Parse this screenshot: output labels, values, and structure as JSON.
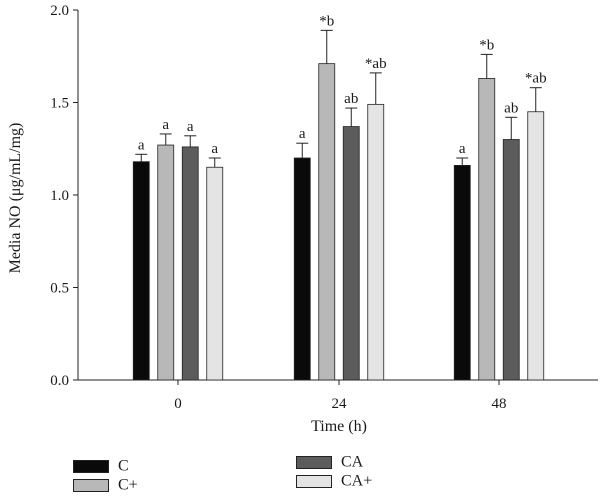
{
  "chart_data": {
    "type": "bar",
    "xlabel": "Time (h)",
    "ylabel": "Media NO (μg/mL/mg)",
    "categories": [
      "0",
      "24",
      "48"
    ],
    "ylim": [
      0,
      2.0
    ],
    "yticks": [
      "0.0",
      "0.5",
      "1.0",
      "1.5",
      "2.0"
    ],
    "grid": false,
    "legend_position": "bottom-left",
    "series": [
      {
        "name": "C",
        "color": "#0a0a0a",
        "values": [
          1.18,
          1.2,
          1.16
        ],
        "errors": [
          0.04,
          0.08,
          0.04
        ],
        "labels": [
          "a",
          "a",
          "a"
        ]
      },
      {
        "name": "C+",
        "color": "#b8b8b8",
        "values": [
          1.27,
          1.71,
          1.63
        ],
        "errors": [
          0.06,
          0.18,
          0.13
        ],
        "labels": [
          "a",
          "*b",
          "*b"
        ]
      },
      {
        "name": "CA",
        "color": "#5c5c5c",
        "values": [
          1.26,
          1.37,
          1.3
        ],
        "errors": [
          0.06,
          0.1,
          0.12
        ],
        "labels": [
          "a",
          "ab",
          "ab"
        ]
      },
      {
        "name": "CA+",
        "color": "#e4e4e4",
        "values": [
          1.15,
          1.49,
          1.45
        ],
        "errors": [
          0.05,
          0.17,
          0.13
        ],
        "labels": [
          "a",
          "*ab",
          "*ab"
        ]
      }
    ]
  }
}
